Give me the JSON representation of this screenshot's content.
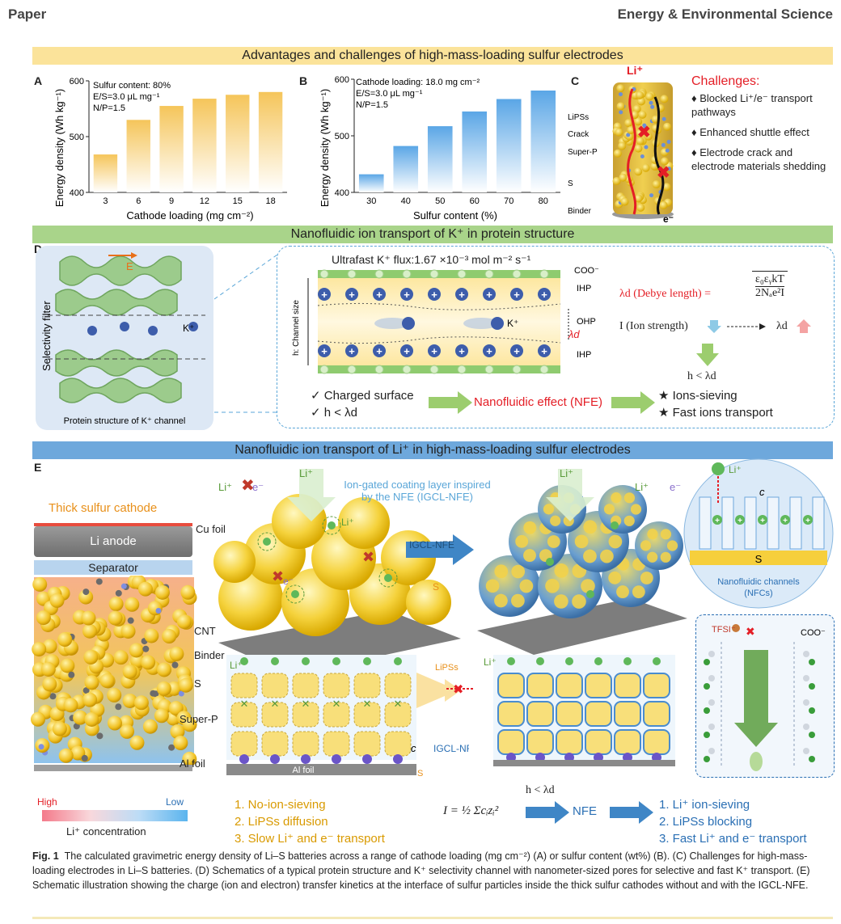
{
  "header": {
    "left": "Paper",
    "right": "Energy & Environmental Science"
  },
  "bands": {
    "top": "Advantages and challenges of high-mass-loading sulfur electrodes",
    "middle": "Nanofluidic ion transport of K⁺ in protein structure",
    "bottom": "Nanofluidic ion transport of Li⁺ in high-mass-loading sulfur electrodes"
  },
  "panels": {
    "A": "A",
    "B": "B",
    "C": "C",
    "D": "D",
    "E": "E"
  },
  "chart_a_notes": [
    "Sulfur content: 80%",
    "E/S=3.0 μL mg⁻¹",
    "N/P=1.5"
  ],
  "chart_b_notes": [
    "Cathode loading: 18.0 mg cm⁻²",
    "E/S=3.0 μL mg⁻¹",
    "N/P=1.5"
  ],
  "chart_data": [
    {
      "type": "bar",
      "title": "",
      "categories": [
        "3",
        "6",
        "9",
        "12",
        "15",
        "18"
      ],
      "values": [
        468,
        530,
        555,
        568,
        575,
        580
      ],
      "xlabel": "Cathode loading (mg cm⁻²)",
      "ylabel": "Energy density (Wh kg⁻¹)",
      "ylim": [
        400,
        600
      ],
      "yticks": [
        "400",
        "500",
        "600"
      ],
      "color": "#f5c55a"
    },
    {
      "type": "bar",
      "title": "",
      "categories": [
        "30",
        "40",
        "50",
        "60",
        "70",
        "80"
      ],
      "values": [
        432,
        482,
        517,
        543,
        565,
        580
      ],
      "xlabel": "Sulfur content (%)",
      "ylabel": "Energy density (Wh kg⁻¹)",
      "ylim": [
        400,
        600
      ],
      "yticks": [
        "400",
        "500",
        "600"
      ],
      "color": "#5aa6e6"
    }
  ],
  "panel_c": {
    "labels": [
      "Li⁺",
      "LiPSs",
      "Crack",
      "Super-P",
      "S",
      "Binder",
      "e⁻"
    ],
    "challenges_title": "Challenges:",
    "challenges": [
      "♦ Blocked Li⁺/e⁻ transport pathways",
      "♦ Enhanced shuttle effect",
      "♦ Electrode crack and electrode materials shedding"
    ]
  },
  "panel_d": {
    "e_label": "E",
    "filter_label": "Selectivity filter",
    "k_label": "K⁺",
    "protein_caption": "Protein structure of K⁺ channel",
    "flux": "Ultrafast K⁺ flux:1.67 ×10⁻³ mol m⁻² s⁻¹",
    "coo": "COO⁻",
    "ihp": "IHP",
    "ohp": "OHP",
    "ihp2": "IHP",
    "channel": "h: Channel size",
    "lambda": "λd",
    "k_ion": "K⁺",
    "check1": "✓ Charged surface",
    "check2": "✓ h < λd",
    "nfe": "Nanofluidic effect (NFE)",
    "star1": "★ Ions-sieving",
    "star2": "★ Fast ions transport",
    "debye_lhs": "λd (Debye length) =",
    "debye_num": "ε₀εᵧkT",
    "debye_den": "2Nₐe²I",
    "ion_strength": "I (Ion strength)",
    "lambda_right": "λd",
    "cond": "h < λd"
  },
  "panel_e": {
    "thick": "Thick sulfur cathode",
    "li_anode": "Li anode",
    "cu_foil": "Cu foil",
    "separator": "Separator",
    "cnt": "CNT",
    "binder": "Binder",
    "s": "S",
    "superp": "Super-P",
    "al_foil": "Al foil",
    "high": "High",
    "low": "Low",
    "conc": "Li⁺ concentration",
    "li1": "Li⁺",
    "e1": "e⁻",
    "li2": "Li⁺",
    "li3": "Li⁺",
    "e2": "e⁻",
    "igcl_title1": "Ion-gated coating layer inspired",
    "igcl_title2": "by the NFE (IGCL-NFE)",
    "igcl_arrow": "IGCL-NFE",
    "lipss": "LiPSs",
    "c_label": "c",
    "igcl2": "IGCL-NFE",
    "al_foil2": "Al foil",
    "s2": "S",
    "s3": "S",
    "tfsi": "TFSI⁻",
    "coo2": "COO⁻",
    "nfc1": "Nanofluidic channels",
    "nfc2": "(NFCs)",
    "left_list": [
      "1.  No-ion-sieving",
      "2.  LiPSs diffusion",
      "3.  Slow Li⁺ and e⁻ transport"
    ],
    "right_list": [
      "1.  Li⁺ ion-sieving",
      "2.  LiPSs blocking",
      "3.  Fast Li⁺ and e⁻ transport"
    ],
    "equation": "I = ½ Σcᵢzᵢ²",
    "cond": "h < λd",
    "nfe": "NFE"
  },
  "caption": {
    "fig": "Fig. 1",
    "text": "The calculated gravimetric energy density of Li–S batteries across a range of cathode loading (mg cm⁻²) (A) or sulfur content (wt%) (B). (C) Challenges for high-mass-loading electrodes in Li–S batteries. (D) Schematics of a typical protein structure and K⁺ selectivity channel with nanometer-sized pores for selective and fast K⁺ transport. (E) Schematic illustration showing the charge (ion and electron) transfer kinetics at the interface of sulfur particles inside the thick sulfur cathodes without and with the IGCL-NFE."
  }
}
